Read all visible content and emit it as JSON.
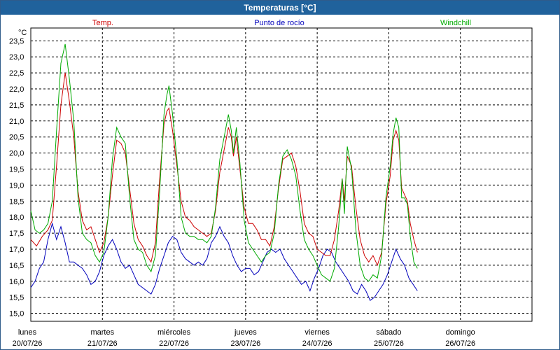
{
  "window": {
    "title": "Temperaturas [°C]"
  },
  "colors": {
    "temp": "#cc0000",
    "dew": "#0000bb",
    "windchill": "#00aa00",
    "grid": "#000000"
  },
  "chart_data": {
    "type": "line",
    "title": "Temperaturas [°C]",
    "ylabel": "°C",
    "ylim": [
      14.75,
      23.9
    ],
    "yticks": [
      "23,5",
      "23,0",
      "22,5",
      "22,0",
      "21,5",
      "21,0",
      "20,5",
      "20,0",
      "19,5",
      "19,0",
      "18,5",
      "18,0",
      "17,5",
      "17,0",
      "16,5",
      "16,0",
      "15,5",
      "15,0"
    ],
    "xlim": [
      0,
      7
    ],
    "xticks": [
      {
        "day": "lunes",
        "date": "20/07/26"
      },
      {
        "day": "martes",
        "date": "21/07/26"
      },
      {
        "day": "miércoles",
        "date": "22/07/26"
      },
      {
        "day": "jueves",
        "date": "23/07/26"
      },
      {
        "day": "viernes",
        "date": "24/07/26"
      },
      {
        "day": "sábado",
        "date": "25/07/26"
      },
      {
        "day": "domingo",
        "date": "26/07/26"
      }
    ],
    "grid": true,
    "legend_position": "top",
    "series": [
      {
        "name": "Temp.",
        "points": [
          [
            0.0,
            17.3
          ],
          [
            0.08,
            17.1
          ],
          [
            0.16,
            17.4
          ],
          [
            0.24,
            17.6
          ],
          [
            0.3,
            17.9
          ],
          [
            0.36,
            19.6
          ],
          [
            0.42,
            21.5
          ],
          [
            0.48,
            22.5
          ],
          [
            0.54,
            21.6
          ],
          [
            0.6,
            20.5
          ],
          [
            0.66,
            18.8
          ],
          [
            0.72,
            17.9
          ],
          [
            0.78,
            17.6
          ],
          [
            0.84,
            17.7
          ],
          [
            0.9,
            17.3
          ],
          [
            0.96,
            16.9
          ],
          [
            1.02,
            17.2
          ],
          [
            1.08,
            18.0
          ],
          [
            1.14,
            19.3
          ],
          [
            1.2,
            20.4
          ],
          [
            1.26,
            20.3
          ],
          [
            1.32,
            20.0
          ],
          [
            1.38,
            18.9
          ],
          [
            1.44,
            17.8
          ],
          [
            1.5,
            17.3
          ],
          [
            1.56,
            17.1
          ],
          [
            1.62,
            16.8
          ],
          [
            1.68,
            16.6
          ],
          [
            1.74,
            17.2
          ],
          [
            1.8,
            19.2
          ],
          [
            1.86,
            20.9
          ],
          [
            1.9,
            21.3
          ],
          [
            1.93,
            21.4
          ],
          [
            1.98,
            20.7
          ],
          [
            2.04,
            19.6
          ],
          [
            2.1,
            18.5
          ],
          [
            2.16,
            18.0
          ],
          [
            2.22,
            17.9
          ],
          [
            2.28,
            17.7
          ],
          [
            2.34,
            17.6
          ],
          [
            2.4,
            17.5
          ],
          [
            2.46,
            17.4
          ],
          [
            2.52,
            17.5
          ],
          [
            2.58,
            18.2
          ],
          [
            2.64,
            19.4
          ],
          [
            2.7,
            20.1
          ],
          [
            2.76,
            20.8
          ],
          [
            2.8,
            20.5
          ],
          [
            2.83,
            19.9
          ],
          [
            2.87,
            20.5
          ],
          [
            2.92,
            19.5
          ],
          [
            2.98,
            18.3
          ],
          [
            3.04,
            17.8
          ],
          [
            3.1,
            17.8
          ],
          [
            3.16,
            17.6
          ],
          [
            3.22,
            17.3
          ],
          [
            3.28,
            17.3
          ],
          [
            3.34,
            17.1
          ],
          [
            3.4,
            17.7
          ],
          [
            3.46,
            18.9
          ],
          [
            3.52,
            19.8
          ],
          [
            3.58,
            19.9
          ],
          [
            3.64,
            20.0
          ],
          [
            3.7,
            19.6
          ],
          [
            3.76,
            18.8
          ],
          [
            3.82,
            17.8
          ],
          [
            3.88,
            17.5
          ],
          [
            3.94,
            17.4
          ],
          [
            4.0,
            17.0
          ],
          [
            4.06,
            16.9
          ],
          [
            4.12,
            16.8
          ],
          [
            4.18,
            16.8
          ],
          [
            4.24,
            17.3
          ],
          [
            4.3,
            18.2
          ],
          [
            4.35,
            19.2
          ],
          [
            4.38,
            18.5
          ],
          [
            4.42,
            19.9
          ],
          [
            4.48,
            19.6
          ],
          [
            4.54,
            18.3
          ],
          [
            4.6,
            17.3
          ],
          [
            4.66,
            16.8
          ],
          [
            4.72,
            16.6
          ],
          [
            4.78,
            16.8
          ],
          [
            4.84,
            16.5
          ],
          [
            4.9,
            16.9
          ],
          [
            4.96,
            18.4
          ],
          [
            5.02,
            19.3
          ],
          [
            5.06,
            20.4
          ],
          [
            5.1,
            20.7
          ],
          [
            5.14,
            20.4
          ],
          [
            5.18,
            18.9
          ],
          [
            5.22,
            18.7
          ],
          [
            5.26,
            18.5
          ],
          [
            5.3,
            17.8
          ],
          [
            5.35,
            17.3
          ],
          [
            5.4,
            16.9
          ]
        ]
      },
      {
        "name": "Punto de rocío",
        "points": [
          [
            0.0,
            15.8
          ],
          [
            0.06,
            16.0
          ],
          [
            0.12,
            16.4
          ],
          [
            0.18,
            16.6
          ],
          [
            0.24,
            17.3
          ],
          [
            0.3,
            17.8
          ],
          [
            0.36,
            17.3
          ],
          [
            0.42,
            17.7
          ],
          [
            0.48,
            17.2
          ],
          [
            0.54,
            16.6
          ],
          [
            0.6,
            16.6
          ],
          [
            0.66,
            16.5
          ],
          [
            0.72,
            16.4
          ],
          [
            0.78,
            16.2
          ],
          [
            0.84,
            15.9
          ],
          [
            0.9,
            16.0
          ],
          [
            0.96,
            16.3
          ],
          [
            1.02,
            16.8
          ],
          [
            1.08,
            17.1
          ],
          [
            1.14,
            17.3
          ],
          [
            1.2,
            17.0
          ],
          [
            1.26,
            16.6
          ],
          [
            1.32,
            16.4
          ],
          [
            1.38,
            16.5
          ],
          [
            1.44,
            16.2
          ],
          [
            1.5,
            15.9
          ],
          [
            1.56,
            15.8
          ],
          [
            1.62,
            15.7
          ],
          [
            1.68,
            15.6
          ],
          [
            1.74,
            15.9
          ],
          [
            1.8,
            16.4
          ],
          [
            1.86,
            16.8
          ],
          [
            1.92,
            17.2
          ],
          [
            1.98,
            17.4
          ],
          [
            2.04,
            17.3
          ],
          [
            2.1,
            16.9
          ],
          [
            2.16,
            16.7
          ],
          [
            2.22,
            16.6
          ],
          [
            2.28,
            16.5
          ],
          [
            2.34,
            16.6
          ],
          [
            2.4,
            16.5
          ],
          [
            2.46,
            16.7
          ],
          [
            2.52,
            17.2
          ],
          [
            2.58,
            17.4
          ],
          [
            2.64,
            17.7
          ],
          [
            2.7,
            17.4
          ],
          [
            2.76,
            17.2
          ],
          [
            2.82,
            16.8
          ],
          [
            2.88,
            16.5
          ],
          [
            2.94,
            16.3
          ],
          [
            3.0,
            16.4
          ],
          [
            3.06,
            16.4
          ],
          [
            3.12,
            16.2
          ],
          [
            3.18,
            16.3
          ],
          [
            3.24,
            16.6
          ],
          [
            3.3,
            16.9
          ],
          [
            3.36,
            17.0
          ],
          [
            3.42,
            16.9
          ],
          [
            3.48,
            17.0
          ],
          [
            3.54,
            16.7
          ],
          [
            3.6,
            16.5
          ],
          [
            3.66,
            16.3
          ],
          [
            3.72,
            16.1
          ],
          [
            3.78,
            15.9
          ],
          [
            3.84,
            16.0
          ],
          [
            3.9,
            15.7
          ],
          [
            3.96,
            16.1
          ],
          [
            4.02,
            16.4
          ],
          [
            4.08,
            16.8
          ],
          [
            4.14,
            17.0
          ],
          [
            4.2,
            16.9
          ],
          [
            4.26,
            16.6
          ],
          [
            4.32,
            16.4
          ],
          [
            4.38,
            16.2
          ],
          [
            4.44,
            16.0
          ],
          [
            4.5,
            15.7
          ],
          [
            4.56,
            15.6
          ],
          [
            4.62,
            15.9
          ],
          [
            4.68,
            15.7
          ],
          [
            4.74,
            15.4
          ],
          [
            4.8,
            15.5
          ],
          [
            4.86,
            15.7
          ],
          [
            4.92,
            15.9
          ],
          [
            4.98,
            16.2
          ],
          [
            5.04,
            16.6
          ],
          [
            5.1,
            17.0
          ],
          [
            5.16,
            16.7
          ],
          [
            5.22,
            16.5
          ],
          [
            5.28,
            16.1
          ],
          [
            5.34,
            15.9
          ],
          [
            5.4,
            15.7
          ]
        ]
      },
      {
        "name": "Windchill",
        "points": [
          [
            0.0,
            18.2
          ],
          [
            0.06,
            17.6
          ],
          [
            0.12,
            17.5
          ],
          [
            0.18,
            17.6
          ],
          [
            0.24,
            17.8
          ],
          [
            0.3,
            18.5
          ],
          [
            0.36,
            20.7
          ],
          [
            0.42,
            22.8
          ],
          [
            0.48,
            23.4
          ],
          [
            0.54,
            22.3
          ],
          [
            0.6,
            21.0
          ],
          [
            0.66,
            18.6
          ],
          [
            0.72,
            17.5
          ],
          [
            0.78,
            17.3
          ],
          [
            0.84,
            17.2
          ],
          [
            0.9,
            16.8
          ],
          [
            0.96,
            16.6
          ],
          [
            1.02,
            16.9
          ],
          [
            1.08,
            18.0
          ],
          [
            1.14,
            19.8
          ],
          [
            1.2,
            20.8
          ],
          [
            1.26,
            20.5
          ],
          [
            1.32,
            20.3
          ],
          [
            1.38,
            18.6
          ],
          [
            1.44,
            17.3
          ],
          [
            1.5,
            17.0
          ],
          [
            1.56,
            16.9
          ],
          [
            1.62,
            16.5
          ],
          [
            1.68,
            16.3
          ],
          [
            1.74,
            16.8
          ],
          [
            1.8,
            18.8
          ],
          [
            1.86,
            21.2
          ],
          [
            1.9,
            21.8
          ],
          [
            1.93,
            22.1
          ],
          [
            1.98,
            21.2
          ],
          [
            2.04,
            19.8
          ],
          [
            2.1,
            18.0
          ],
          [
            2.16,
            17.5
          ],
          [
            2.22,
            17.4
          ],
          [
            2.28,
            17.4
          ],
          [
            2.34,
            17.3
          ],
          [
            2.4,
            17.3
          ],
          [
            2.46,
            17.2
          ],
          [
            2.52,
            17.4
          ],
          [
            2.58,
            18.3
          ],
          [
            2.64,
            19.8
          ],
          [
            2.7,
            20.5
          ],
          [
            2.76,
            21.2
          ],
          [
            2.8,
            20.7
          ],
          [
            2.83,
            20.0
          ],
          [
            2.87,
            20.8
          ],
          [
            2.92,
            19.7
          ],
          [
            2.98,
            17.9
          ],
          [
            3.04,
            17.2
          ],
          [
            3.1,
            17.0
          ],
          [
            3.16,
            16.8
          ],
          [
            3.22,
            16.6
          ],
          [
            3.28,
            16.8
          ],
          [
            3.34,
            16.9
          ],
          [
            3.4,
            17.5
          ],
          [
            3.46,
            19.0
          ],
          [
            3.52,
            19.9
          ],
          [
            3.58,
            20.1
          ],
          [
            3.64,
            19.8
          ],
          [
            3.7,
            19.3
          ],
          [
            3.76,
            18.2
          ],
          [
            3.82,
            17.3
          ],
          [
            3.88,
            17.0
          ],
          [
            3.94,
            16.8
          ],
          [
            4.0,
            16.5
          ],
          [
            4.06,
            16.2
          ],
          [
            4.12,
            16.1
          ],
          [
            4.18,
            16.0
          ],
          [
            4.24,
            16.4
          ],
          [
            4.3,
            17.7
          ],
          [
            4.35,
            19.2
          ],
          [
            4.38,
            18.1
          ],
          [
            4.42,
            20.2
          ],
          [
            4.48,
            19.5
          ],
          [
            4.54,
            17.6
          ],
          [
            4.6,
            16.5
          ],
          [
            4.66,
            16.1
          ],
          [
            4.72,
            16.0
          ],
          [
            4.78,
            16.2
          ],
          [
            4.84,
            16.1
          ],
          [
            4.9,
            16.8
          ],
          [
            4.96,
            18.6
          ],
          [
            5.02,
            19.6
          ],
          [
            5.06,
            20.6
          ],
          [
            5.1,
            21.1
          ],
          [
            5.14,
            20.8
          ],
          [
            5.18,
            18.6
          ],
          [
            5.22,
            18.6
          ],
          [
            5.26,
            18.4
          ],
          [
            5.3,
            17.4
          ],
          [
            5.35,
            16.6
          ],
          [
            5.4,
            16.4
          ]
        ]
      }
    ]
  }
}
